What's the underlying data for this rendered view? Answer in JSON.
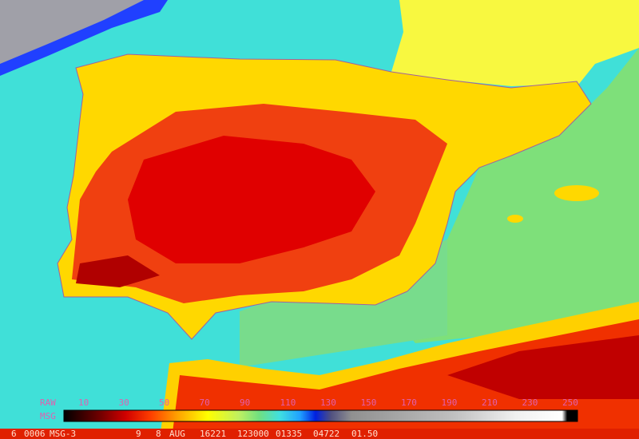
{
  "legend": {
    "raw_label": "RAW",
    "msg_label": "MSG",
    "ticks": [
      10,
      30,
      50,
      70,
      90,
      110,
      130,
      150,
      170,
      190,
      210,
      230,
      250
    ]
  },
  "status_bar": {
    "fields": [
      "6",
      "0006",
      "MSG-3",
      "9",
      "8",
      "AUG",
      "16221",
      "123000",
      "01335",
      "04722",
      "01.50"
    ]
  }
}
